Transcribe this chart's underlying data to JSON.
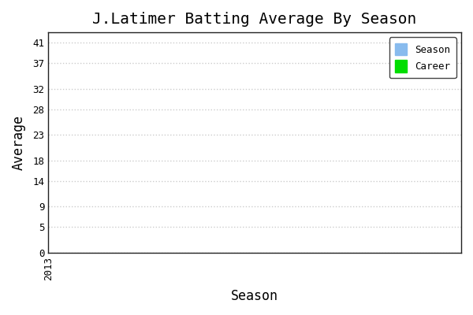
{
  "title": "J.Latimer Batting Average By Season",
  "xlabel": "Season",
  "ylabel": "Average",
  "background_color": "#ffffff",
  "plot_bg_color": "#ffffff",
  "yticks": [
    0,
    5,
    9,
    14,
    18,
    23,
    28,
    32,
    37,
    41
  ],
  "ylim": [
    0,
    43
  ],
  "xlim": [
    2013,
    2014
  ],
  "xticks": [
    2013
  ],
  "season_color": "#88bbee",
  "career_color": "#00dd00",
  "legend_labels": [
    "Season",
    "Career"
  ],
  "grid_color": "#cccccc",
  "grid_linestyle": "dotted",
  "title_fontsize": 14,
  "axis_label_fontsize": 12,
  "tick_fontsize": 9,
  "font_family": "monospace"
}
